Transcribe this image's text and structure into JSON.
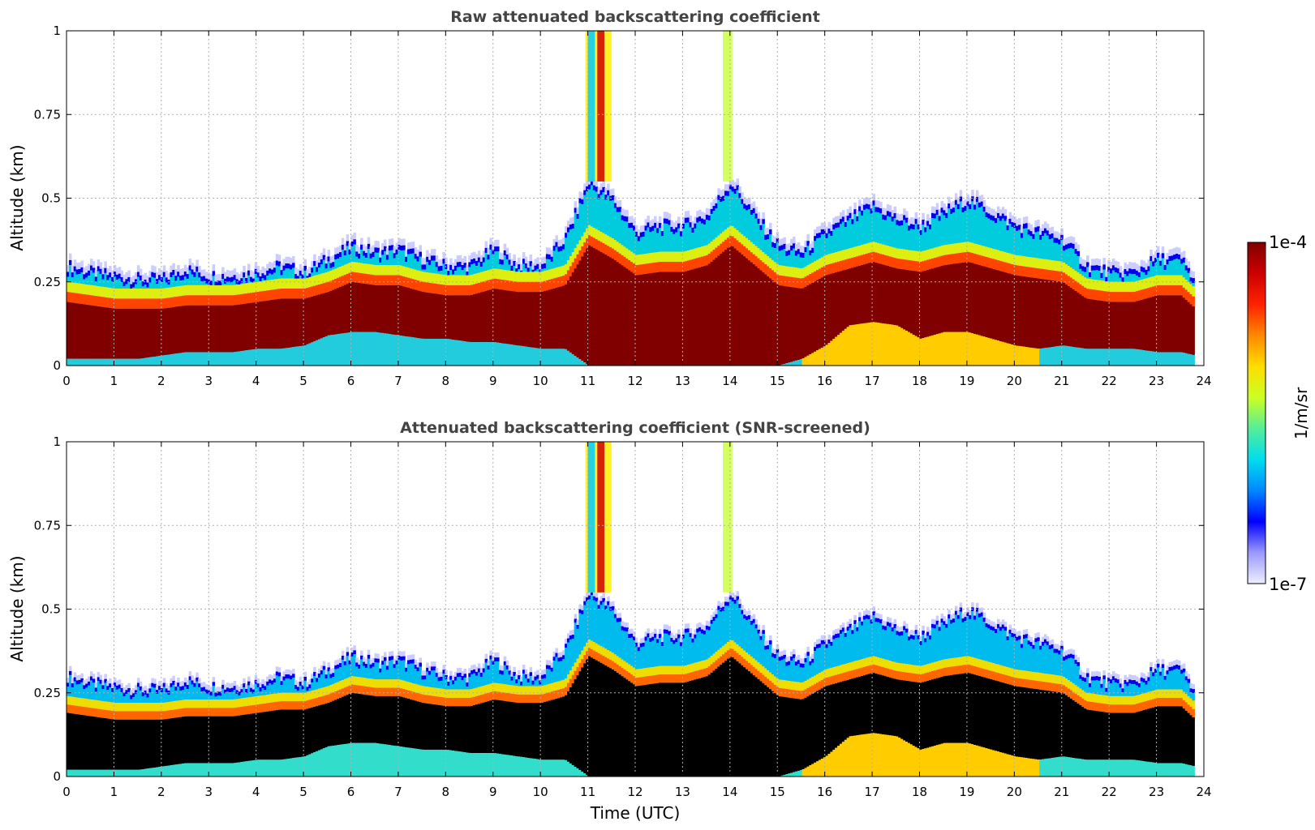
{
  "chart_data": [
    {
      "type": "heatmap",
      "title": "Raw attenuated backscattering coefficient",
      "xlabel": "",
      "ylabel": "Altitude (km)",
      "xlim": [
        0,
        24
      ],
      "ylim": [
        0,
        1
      ],
      "x_ticks": [
        "0",
        "1",
        "2",
        "3",
        "4",
        "5",
        "6",
        "7",
        "8",
        "9",
        "10",
        "11",
        "12",
        "13",
        "14",
        "15",
        "16",
        "17",
        "18",
        "19",
        "20",
        "21",
        "22",
        "23",
        "24"
      ],
      "y_ticks": [
        "0",
        "0.25",
        "0.5",
        "0.75",
        "1"
      ],
      "grid": true,
      "screened": false,
      "profile": {
        "time_utc": [
          0,
          0.5,
          1,
          1.5,
          2,
          2.5,
          3,
          3.5,
          4,
          4.5,
          5,
          5.5,
          6,
          6.5,
          7,
          7.5,
          8,
          8.5,
          9,
          9.5,
          10,
          10.5,
          11,
          11.5,
          12,
          12.5,
          13,
          13.5,
          14,
          14.5,
          15,
          15.5,
          16,
          16.5,
          17,
          17.5,
          18,
          18.5,
          19,
          19.5,
          20,
          20.5,
          21,
          21.5,
          22,
          22.5,
          23,
          23.5,
          23.8
        ],
        "layer_top_km": [
          0.3,
          0.28,
          0.27,
          0.26,
          0.26,
          0.29,
          0.27,
          0.27,
          0.28,
          0.3,
          0.28,
          0.32,
          0.36,
          0.34,
          0.35,
          0.32,
          0.3,
          0.3,
          0.35,
          0.3,
          0.3,
          0.38,
          0.55,
          0.5,
          0.4,
          0.42,
          0.42,
          0.45,
          0.55,
          0.45,
          0.36,
          0.34,
          0.4,
          0.44,
          0.48,
          0.44,
          0.42,
          0.46,
          0.5,
          0.46,
          0.42,
          0.4,
          0.38,
          0.3,
          0.28,
          0.28,
          0.32,
          0.32,
          0.25
        ],
        "core_top_km": [
          0.19,
          0.18,
          0.17,
          0.17,
          0.17,
          0.18,
          0.18,
          0.18,
          0.19,
          0.2,
          0.2,
          0.22,
          0.25,
          0.24,
          0.24,
          0.22,
          0.21,
          0.21,
          0.23,
          0.22,
          0.22,
          0.24,
          0.36,
          0.32,
          0.27,
          0.28,
          0.28,
          0.3,
          0.36,
          0.3,
          0.24,
          0.23,
          0.27,
          0.29,
          0.31,
          0.29,
          0.28,
          0.3,
          0.31,
          0.29,
          0.27,
          0.26,
          0.25,
          0.2,
          0.19,
          0.19,
          0.21,
          0.21,
          0.17
        ],
        "low_layer_top_km": [
          0.02,
          0.02,
          0.02,
          0.02,
          0.03,
          0.04,
          0.04,
          0.04,
          0.05,
          0.05,
          0.06,
          0.09,
          0.1,
          0.1,
          0.09,
          0.08,
          0.08,
          0.07,
          0.07,
          0.06,
          0.05,
          0.05,
          0.0,
          0.0,
          0.0,
          0.0,
          0.0,
          0.0,
          0.0,
          0.0,
          0.0,
          0.02,
          0.06,
          0.12,
          0.13,
          0.12,
          0.08,
          0.1,
          0.1,
          0.08,
          0.06,
          0.05,
          0.06,
          0.05,
          0.05,
          0.05,
          0.04,
          0.04,
          0.03
        ]
      }
    },
    {
      "type": "heatmap",
      "title": "Attenuated backscattering coefficient (SNR-screened)",
      "xlabel": "Time (UTC)",
      "ylabel": "Altitude (km)",
      "xlim": [
        0,
        24
      ],
      "ylim": [
        0,
        1
      ],
      "x_ticks": [
        "0",
        "1",
        "2",
        "3",
        "4",
        "5",
        "6",
        "7",
        "8",
        "9",
        "10",
        "11",
        "12",
        "13",
        "14",
        "15",
        "16",
        "17",
        "18",
        "19",
        "20",
        "21",
        "22",
        "23",
        "24"
      ],
      "y_ticks": [
        "0",
        "0.25",
        "0.5",
        "0.75",
        "1"
      ],
      "grid": true,
      "screened": true
    }
  ],
  "colorbar": {
    "label": "1/m/sr",
    "max_label": "1e-4",
    "min_label": "1e-7",
    "scale": "log",
    "colors": [
      "#eeeeff",
      "#9999ff",
      "#0000ff",
      "#0088ff",
      "#00ddee",
      "#55ee99",
      "#ccff22",
      "#ffdd00",
      "#ff8800",
      "#ff2200",
      "#cc0000",
      "#800000"
    ]
  }
}
